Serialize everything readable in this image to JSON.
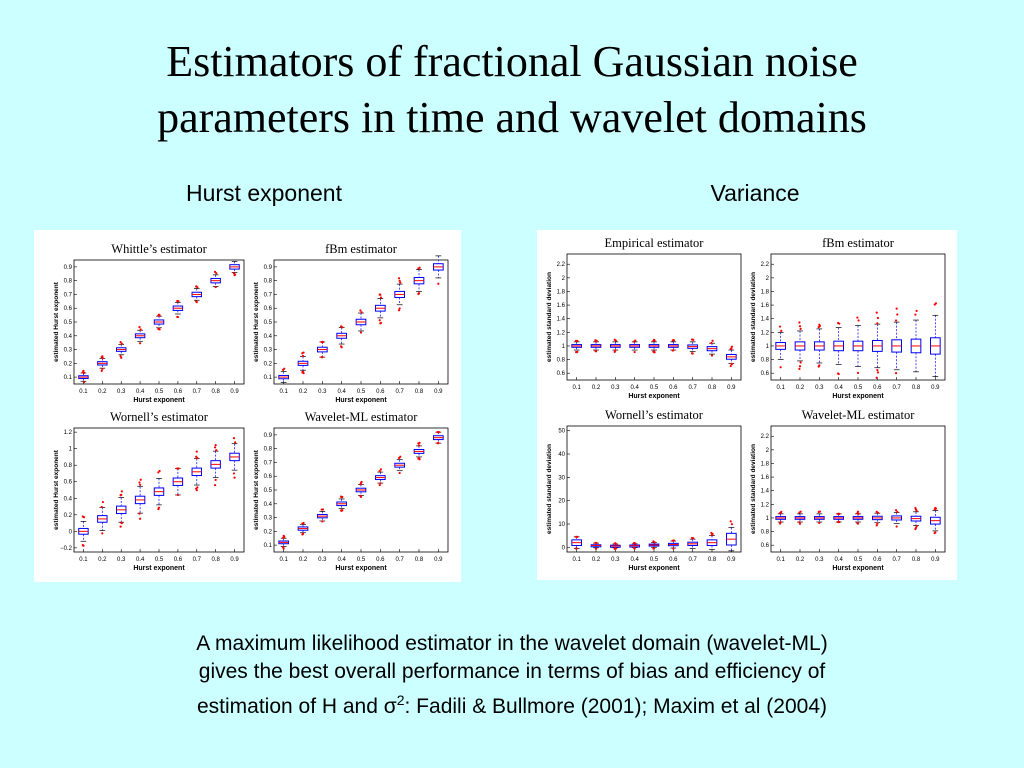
{
  "title": {
    "line1": "Estimators of fractional Gaussian noise",
    "line2": "parameters in time and wavelet domains"
  },
  "subheads": {
    "hurst": "Hurst exponent",
    "variance": "Variance"
  },
  "caption": {
    "line1": "A maximum likelihood estimator in the wavelet domain (wavelet-ML)",
    "line2": "gives the best overall performance in terms of bias and efficiency of",
    "line3_pre": "estimation of H and σ",
    "line3_sup": "2",
    "line3_post": ": Fadili & Bullmore (2001); Maxim et al (2004)"
  },
  "colors": {
    "background": "#ccffff",
    "box": "#0000ff",
    "median": "#ff0000",
    "outlier": "#ff0000"
  },
  "chart_data": [
    {
      "type": "boxplot",
      "group": "hurst",
      "title": "Whittle’s estimator",
      "xlabel": "Hurst exponent",
      "ylabel": "estimated Hurst exponent",
      "categories": [
        "0.1",
        "0.2",
        "0.3",
        "0.4",
        "0.5",
        "0.6",
        "0.7",
        "0.8",
        "0.9"
      ],
      "yticks": [
        "0.1",
        "0.2",
        "0.3",
        "0.4",
        "0.5",
        "0.6",
        "0.7",
        "0.8",
        "0.9"
      ],
      "ylim": [
        0.05,
        0.95
      ],
      "medians": [
        0.1,
        0.2,
        0.3,
        0.4,
        0.5,
        0.6,
        0.7,
        0.8,
        0.9
      ],
      "spread": [
        0.01,
        0.012,
        0.013,
        0.014,
        0.015,
        0.016,
        0.016,
        0.016,
        0.016
      ],
      "whisker": [
        0.03,
        0.035,
        0.038,
        0.04,
        0.042,
        0.042,
        0.042,
        0.042,
        0.04
      ]
    },
    {
      "type": "boxplot",
      "group": "hurst",
      "title": "fBm estimator",
      "xlabel": "Hurst exponent",
      "ylabel": "estimated Hurst exponent",
      "categories": [
        "0.1",
        "0.2",
        "0.3",
        "0.4",
        "0.5",
        "0.6",
        "0.7",
        "0.8",
        "0.9"
      ],
      "yticks": [
        "0.1",
        "0.2",
        "0.3",
        "0.4",
        "0.5",
        "0.6",
        "0.7",
        "0.8",
        "0.9"
      ],
      "ylim": [
        0.05,
        0.95
      ],
      "medians": [
        0.1,
        0.2,
        0.3,
        0.4,
        0.5,
        0.6,
        0.7,
        0.8,
        0.9
      ],
      "spread": [
        0.012,
        0.015,
        0.017,
        0.018,
        0.02,
        0.021,
        0.022,
        0.023,
        0.023
      ],
      "whisker": [
        0.04,
        0.05,
        0.055,
        0.06,
        0.065,
        0.07,
        0.075,
        0.08,
        0.08
      ]
    },
    {
      "type": "boxplot",
      "group": "hurst",
      "title": "Wornell’s estimator",
      "xlabel": "Hurst exponent",
      "ylabel": "estimated Hurst exponent",
      "categories": [
        "0.1",
        "0.2",
        "0.3",
        "0.4",
        "0.5",
        "0.6",
        "0.7",
        "0.8",
        "0.9"
      ],
      "yticks": [
        "−0.2",
        "0",
        "0.2",
        "0.4",
        "0.6",
        "0.8",
        "1",
        "1.2"
      ],
      "ylim": [
        -0.25,
        1.25
      ],
      "medians": [
        0.0,
        0.15,
        0.26,
        0.38,
        0.48,
        0.6,
        0.72,
        0.81,
        0.9
      ],
      "spread": [
        0.035,
        0.04,
        0.045,
        0.045,
        0.045,
        0.045,
        0.045,
        0.045,
        0.045
      ],
      "whisker": [
        0.12,
        0.14,
        0.15,
        0.16,
        0.16,
        0.16,
        0.16,
        0.16,
        0.16
      ]
    },
    {
      "type": "boxplot",
      "group": "hurst",
      "title": "Wavelet-ML estimator",
      "xlabel": "Hurst exponent",
      "ylabel": "estimated Hurst exponent",
      "categories": [
        "0.1",
        "0.2",
        "0.3",
        "0.4",
        "0.5",
        "0.6",
        "0.7",
        "0.8",
        "0.9"
      ],
      "yticks": [
        "0.1",
        "0.2",
        "0.3",
        "0.4",
        "0.5",
        "0.6",
        "0.7",
        "0.8",
        "0.9"
      ],
      "ylim": [
        0.05,
        0.95
      ],
      "medians": [
        0.12,
        0.22,
        0.31,
        0.4,
        0.5,
        0.59,
        0.68,
        0.78,
        0.88
      ],
      "spread": [
        0.01,
        0.012,
        0.012,
        0.013,
        0.013,
        0.014,
        0.014,
        0.014,
        0.014
      ],
      "whisker": [
        0.03,
        0.03,
        0.035,
        0.035,
        0.04,
        0.04,
        0.04,
        0.04,
        0.04
      ]
    },
    {
      "type": "boxplot",
      "group": "variance",
      "title": "Empirical estimator",
      "xlabel": "Hurst exponent",
      "ylabel": "estimated standard deviation",
      "categories": [
        "0.1",
        "0.2",
        "0.3",
        "0.4",
        "0.5",
        "0.6",
        "0.7",
        "0.8",
        "0.9"
      ],
      "yticks": [
        "0.6",
        "0.8",
        "1",
        "1.2",
        "1.4",
        "1.6",
        "1.8",
        "2",
        "2.2"
      ],
      "ylim": [
        0.5,
        2.35
      ],
      "medians": [
        1.0,
        1.0,
        1.0,
        1.0,
        1.0,
        1.0,
        0.99,
        0.96,
        0.84
      ],
      "spread": [
        0.02,
        0.02,
        0.02,
        0.02,
        0.02,
        0.02,
        0.025,
        0.03,
        0.035
      ],
      "whisker": [
        0.06,
        0.06,
        0.06,
        0.06,
        0.06,
        0.06,
        0.07,
        0.08,
        0.1
      ]
    },
    {
      "type": "boxplot",
      "group": "variance",
      "title": "fBm estimator",
      "xlabel": "Hurst exponent",
      "ylabel": "estimated standard deviation",
      "categories": [
        "0.1",
        "0.2",
        "0.3",
        "0.4",
        "0.5",
        "0.6",
        "0.7",
        "0.8",
        "0.9"
      ],
      "yticks": [
        "0.6",
        "0.8",
        "1",
        "1.2",
        "1.4",
        "1.6",
        "1.8",
        "2",
        "2.2"
      ],
      "ylim": [
        0.5,
        2.35
      ],
      "medians": [
        1.0,
        1.0,
        1.0,
        1.0,
        1.0,
        1.0,
        1.0,
        1.0,
        1.0
      ],
      "spread": [
        0.05,
        0.06,
        0.06,
        0.07,
        0.07,
        0.08,
        0.09,
        0.1,
        0.12
      ],
      "whisker": [
        0.2,
        0.22,
        0.25,
        0.27,
        0.3,
        0.32,
        0.35,
        0.38,
        0.45
      ]
    },
    {
      "type": "boxplot",
      "group": "variance",
      "title": "Wornell’s estimator",
      "xlabel": "Hurst exponent",
      "ylabel": "estimated standard deviation",
      "categories": [
        "0.1",
        "0.2",
        "0.3",
        "0.4",
        "0.5",
        "0.6",
        "0.7",
        "0.8",
        "0.9"
      ],
      "yticks": [
        "0",
        "10",
        "20",
        "30",
        "40",
        "50"
      ],
      "ylim": [
        -2,
        52
      ],
      "medians": [
        2.0,
        0.8,
        0.6,
        0.7,
        1.0,
        1.2,
        1.5,
        2.0,
        3.5
      ],
      "spread": [
        1.2,
        0.3,
        0.3,
        0.3,
        0.4,
        0.5,
        0.7,
        1.2,
        2.5
      ],
      "whisker": [
        2.5,
        1.0,
        0.8,
        0.8,
        1.0,
        1.5,
        2.0,
        3.0,
        5.0
      ]
    },
    {
      "type": "boxplot",
      "group": "variance",
      "title": "Wavelet-ML estimator",
      "xlabel": "Hurst exponent",
      "ylabel": "estimated standard deviation",
      "categories": [
        "0.1",
        "0.2",
        "0.3",
        "0.4",
        "0.5",
        "0.6",
        "0.7",
        "0.8",
        "0.9"
      ],
      "yticks": [
        "0.6",
        "0.8",
        "1",
        "1.2",
        "1.4",
        "1.6",
        "1.8",
        "2",
        "2.2"
      ],
      "ylim": [
        0.5,
        2.35
      ],
      "medians": [
        1.0,
        1.0,
        1.0,
        1.0,
        1.0,
        1.0,
        1.0,
        0.99,
        0.96
      ],
      "spread": [
        0.02,
        0.02,
        0.02,
        0.02,
        0.02,
        0.025,
        0.03,
        0.035,
        0.05
      ],
      "whisker": [
        0.06,
        0.06,
        0.06,
        0.06,
        0.06,
        0.07,
        0.08,
        0.1,
        0.15
      ]
    }
  ]
}
